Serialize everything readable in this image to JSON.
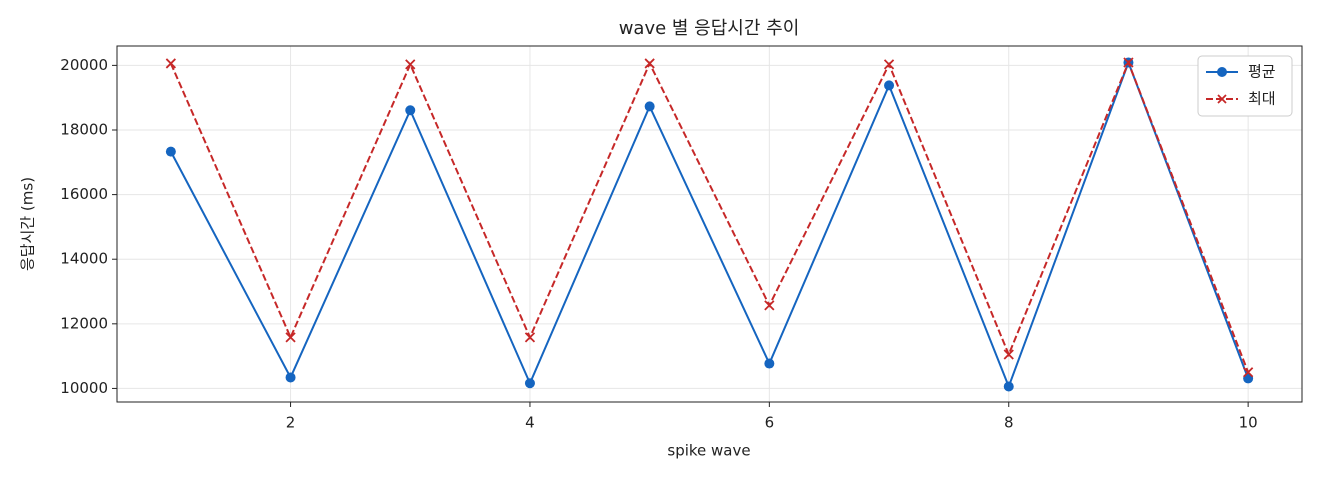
{
  "chart_data": {
    "type": "line",
    "title": "wave 별 응답시간 추이",
    "x_label": "spike wave",
    "y_label": "응답시간 (ms)",
    "x": [
      1,
      2,
      3,
      4,
      5,
      6,
      7,
      8,
      9,
      10
    ],
    "series": [
      {
        "name": "평균",
        "color": "#1565c0",
        "marker": "circle",
        "dash": "solid",
        "values": [
          17330,
          10340,
          18610,
          10160,
          18730,
          10770,
          19380,
          10060,
          20090,
          10310
        ]
      },
      {
        "name": "최대",
        "color": "#c62828",
        "marker": "x",
        "dash": "dashed",
        "values": [
          20060,
          11580,
          20030,
          11580,
          20060,
          12570,
          20030,
          11050,
          20090,
          10500
        ]
      }
    ],
    "xlim": [
      0.55,
      10.45
    ],
    "xticks": [
      2,
      4,
      6,
      8,
      10
    ],
    "ylim": [
      9580,
      20600
    ],
    "yticks": [
      10000,
      12000,
      14000,
      16000,
      18000,
      20000
    ],
    "grid": true,
    "legend": "upper-right"
  }
}
